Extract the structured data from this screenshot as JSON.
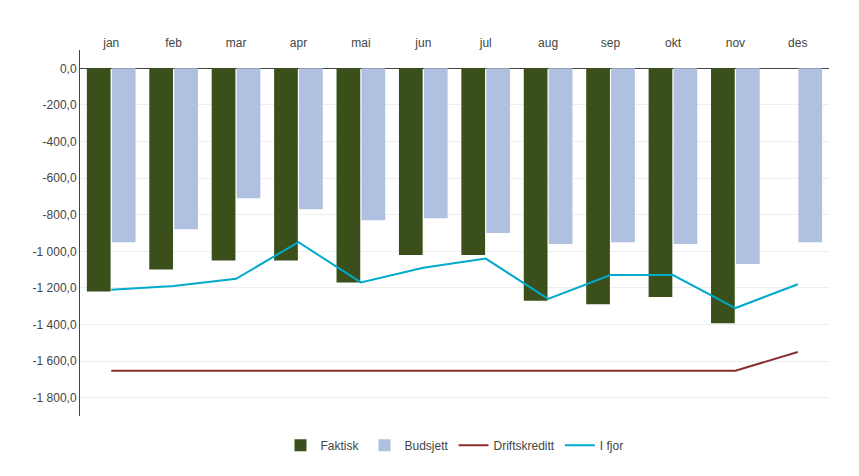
{
  "chart_data": {
    "type": "bar",
    "categories": [
      "jan",
      "feb",
      "mar",
      "apr",
      "mai",
      "jun",
      "jul",
      "aug",
      "sep",
      "okt",
      "nov",
      "des"
    ],
    "series": [
      {
        "name": "Faktisk",
        "type": "bar",
        "color": "#3a4f1a",
        "values": [
          -1220,
          -1100,
          -1050,
          -1050,
          -1170,
          -1020,
          -1020,
          -1270,
          -1290,
          -1250,
          -1393,
          null
        ]
      },
      {
        "name": "Budsjett",
        "type": "bar",
        "color": "#b0c0e0",
        "values": [
          -950,
          -880,
          -710,
          -770,
          -830,
          -820,
          -900,
          -960,
          -950,
          -960,
          -1070,
          -950
        ]
      },
      {
        "name": "Driftskreditt",
        "type": "line",
        "color": "#8b3030",
        "values": [
          -1653,
          -1653,
          -1653,
          -1653,
          -1653,
          -1653,
          -1653,
          -1653,
          -1653,
          -1653,
          -1653,
          -1550
        ]
      },
      {
        "name": "I fjor",
        "type": "line",
        "color": "#00aacc",
        "values": [
          -1210,
          -1190,
          -1150,
          -950,
          -1170,
          -1090,
          -1040,
          -1260,
          -1130,
          -1130,
          -1310,
          -1180
        ]
      }
    ],
    "ylim": [
      -1900,
      100
    ],
    "yticks": [
      {
        "value": 0,
        "label": "0,0"
      },
      {
        "value": -200,
        "label": "-200,0"
      },
      {
        "value": -400,
        "label": "-400,0"
      },
      {
        "value": -600,
        "label": "-600,0"
      },
      {
        "value": -800,
        "label": "-800,0"
      },
      {
        "value": -1000,
        "label": "-1 000,0"
      },
      {
        "value": -1200,
        "label": "-1 200,0"
      },
      {
        "value": -1400,
        "label": "-1 400,0"
      },
      {
        "value": -1600,
        "label": "-1 600,0"
      },
      {
        "value": -1800,
        "label": "-1 800,0"
      }
    ],
    "grid": true,
    "legend": "bottom"
  }
}
